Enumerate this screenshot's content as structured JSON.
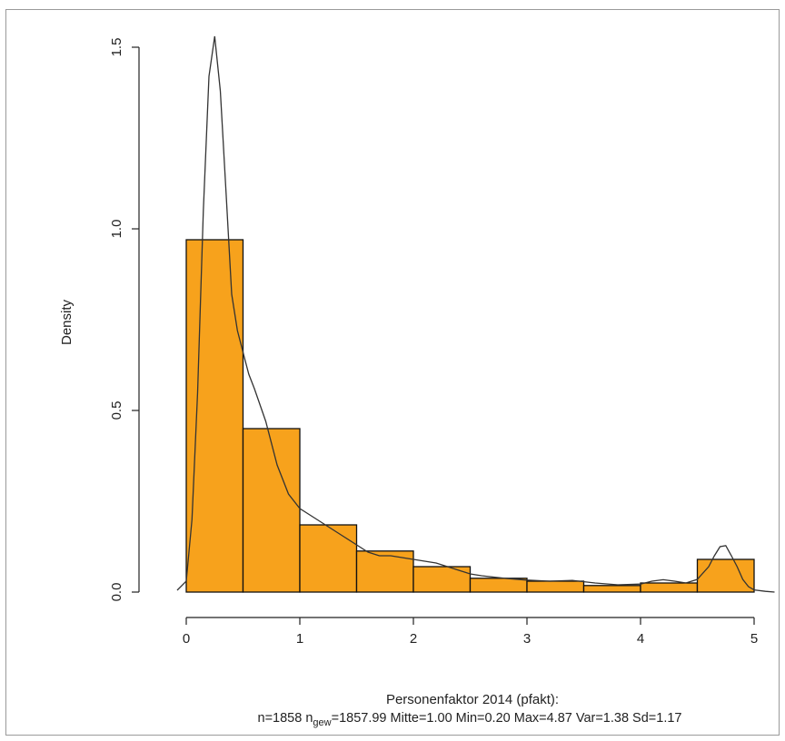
{
  "chart_data": {
    "type": "bar",
    "subtype": "histogram-with-density",
    "ylabel": "Density",
    "xlabel": "Personenfaktor 2014 (pfakt):",
    "stats": {
      "n_label": "n=1858",
      "ngew_prefix": "n",
      "ngew_sub": "gew",
      "rest": "=1857.99 Mitte=1.00 Min=0.20 Max=4.87 Var=1.38 Sd=1.17"
    },
    "xlim": [
      0,
      5
    ],
    "ylim": [
      0,
      1.5
    ],
    "x_ticks": [
      "0",
      "1",
      "2",
      "3",
      "4",
      "5"
    ],
    "y_ticks": [
      "0.0",
      "0.5",
      "1.0",
      "1.5"
    ],
    "bar_color": "#f7a21c",
    "bins": [
      {
        "x0": 0.0,
        "x1": 0.5,
        "density": 0.97
      },
      {
        "x0": 0.5,
        "x1": 1.0,
        "density": 0.45
      },
      {
        "x0": 1.0,
        "x1": 1.5,
        "density": 0.185
      },
      {
        "x0": 1.5,
        "x1": 2.0,
        "density": 0.113
      },
      {
        "x0": 2.0,
        "x1": 2.5,
        "density": 0.07
      },
      {
        "x0": 2.5,
        "x1": 3.0,
        "density": 0.038
      },
      {
        "x0": 3.0,
        "x1": 3.5,
        "density": 0.03
      },
      {
        "x0": 3.5,
        "x1": 4.0,
        "density": 0.018
      },
      {
        "x0": 4.0,
        "x1": 4.5,
        "density": 0.025
      },
      {
        "x0": 4.5,
        "x1": 5.0,
        "density": 0.09
      }
    ],
    "density_curve": {
      "x": [
        -0.08,
        0.0,
        0.05,
        0.1,
        0.15,
        0.2,
        0.25,
        0.3,
        0.35,
        0.4,
        0.45,
        0.5,
        0.55,
        0.6,
        0.7,
        0.8,
        0.9,
        1.0,
        1.1,
        1.2,
        1.3,
        1.4,
        1.5,
        1.6,
        1.7,
        1.8,
        1.9,
        2.0,
        2.1,
        2.2,
        2.3,
        2.4,
        2.5,
        2.6,
        2.8,
        3.0,
        3.2,
        3.4,
        3.6,
        3.8,
        4.0,
        4.1,
        4.2,
        4.3,
        4.4,
        4.5,
        4.6,
        4.65,
        4.7,
        4.75,
        4.8,
        4.85,
        4.9,
        4.95,
        5.0,
        5.1,
        5.18
      ],
      "y": [
        0.005,
        0.03,
        0.2,
        0.55,
        1.05,
        1.42,
        1.53,
        1.38,
        1.1,
        0.82,
        0.72,
        0.66,
        0.6,
        0.56,
        0.47,
        0.35,
        0.27,
        0.23,
        0.21,
        0.19,
        0.17,
        0.15,
        0.13,
        0.11,
        0.1,
        0.1,
        0.095,
        0.09,
        0.085,
        0.08,
        0.07,
        0.06,
        0.05,
        0.045,
        0.038,
        0.033,
        0.03,
        0.032,
        0.025,
        0.02,
        0.022,
        0.03,
        0.034,
        0.03,
        0.025,
        0.035,
        0.07,
        0.1,
        0.125,
        0.128,
        0.1,
        0.07,
        0.035,
        0.015,
        0.006,
        0.002,
        0.0
      ]
    }
  }
}
